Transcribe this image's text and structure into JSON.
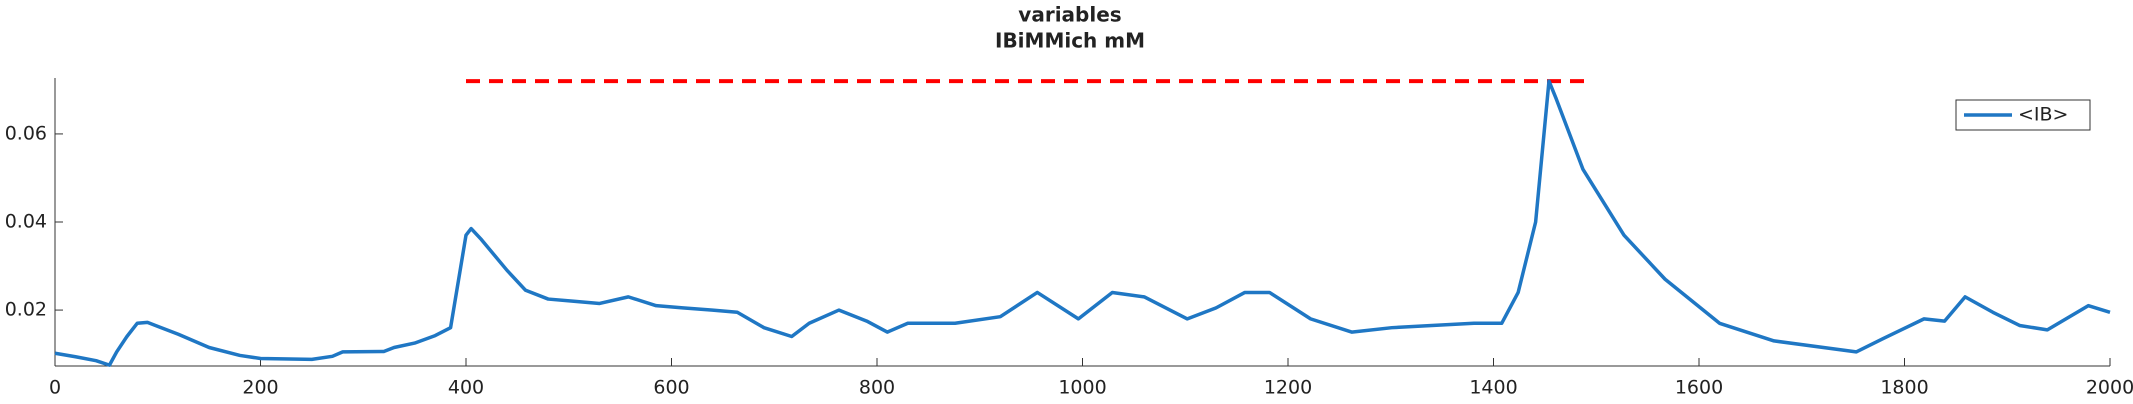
{
  "chart_data": {
    "type": "line",
    "title": "variables",
    "subtitle": "IBiMMich mM",
    "x": [
      0,
      20,
      40,
      53,
      60,
      70,
      80,
      90,
      100,
      120,
      150,
      180,
      200,
      250,
      270,
      280,
      320,
      330,
      350,
      370,
      385,
      395,
      400,
      405,
      415,
      440,
      458,
      480,
      505,
      530,
      558,
      585,
      611,
      640,
      664,
      690,
      717,
      734,
      763,
      790,
      810,
      830,
      876,
      920,
      956,
      996,
      1029,
      1060,
      1102,
      1130,
      1158,
      1182,
      1222,
      1262,
      1301,
      1340,
      1381,
      1408,
      1424,
      1441,
      1454,
      1461,
      1487,
      1527,
      1567,
      1620,
      1673,
      1753,
      1779,
      1819,
      1839,
      1859,
      1886,
      1912,
      1939,
      1979,
      2000
    ],
    "series": [
      {
        "name": "<IB>",
        "color": "#1f77c4",
        "values": [
          0.0102,
          0.0094,
          0.0085,
          0.0075,
          0.0105,
          0.014,
          0.017,
          0.0172,
          0.0163,
          0.0145,
          0.0115,
          0.0097,
          0.009,
          0.0088,
          0.0095,
          0.0105,
          0.0106,
          0.0115,
          0.0125,
          0.0142,
          0.016,
          0.03,
          0.037,
          0.0385,
          0.036,
          0.029,
          0.0245,
          0.0225,
          0.022,
          0.0215,
          0.023,
          0.021,
          0.0205,
          0.02,
          0.0195,
          0.016,
          0.014,
          0.017,
          0.02,
          0.0175,
          0.015,
          0.017,
          0.017,
          0.0185,
          0.024,
          0.018,
          0.024,
          0.023,
          0.018,
          0.0205,
          0.024,
          0.024,
          0.018,
          0.015,
          0.016,
          0.0165,
          0.017,
          0.017,
          0.024,
          0.04,
          0.072,
          0.068,
          0.052,
          0.037,
          0.027,
          0.017,
          0.013,
          0.0105,
          0.0135,
          0.018,
          0.0175,
          0.023,
          0.0195,
          0.0165,
          0.0155,
          0.021,
          0.0195
        ]
      }
    ],
    "reference_line": {
      "x": [
        400,
        1490
      ],
      "y": 0.072,
      "color": "#ff0000"
    },
    "xlim": [
      0,
      2000
    ],
    "xticks": [
      0,
      200,
      400,
      600,
      800,
      1000,
      1200,
      1400,
      1600,
      1800,
      2000
    ],
    "ylim": [
      0.0073,
      0.0727
    ],
    "yticks": [
      0.02,
      0.04,
      0.06
    ],
    "legend": "top-right"
  }
}
